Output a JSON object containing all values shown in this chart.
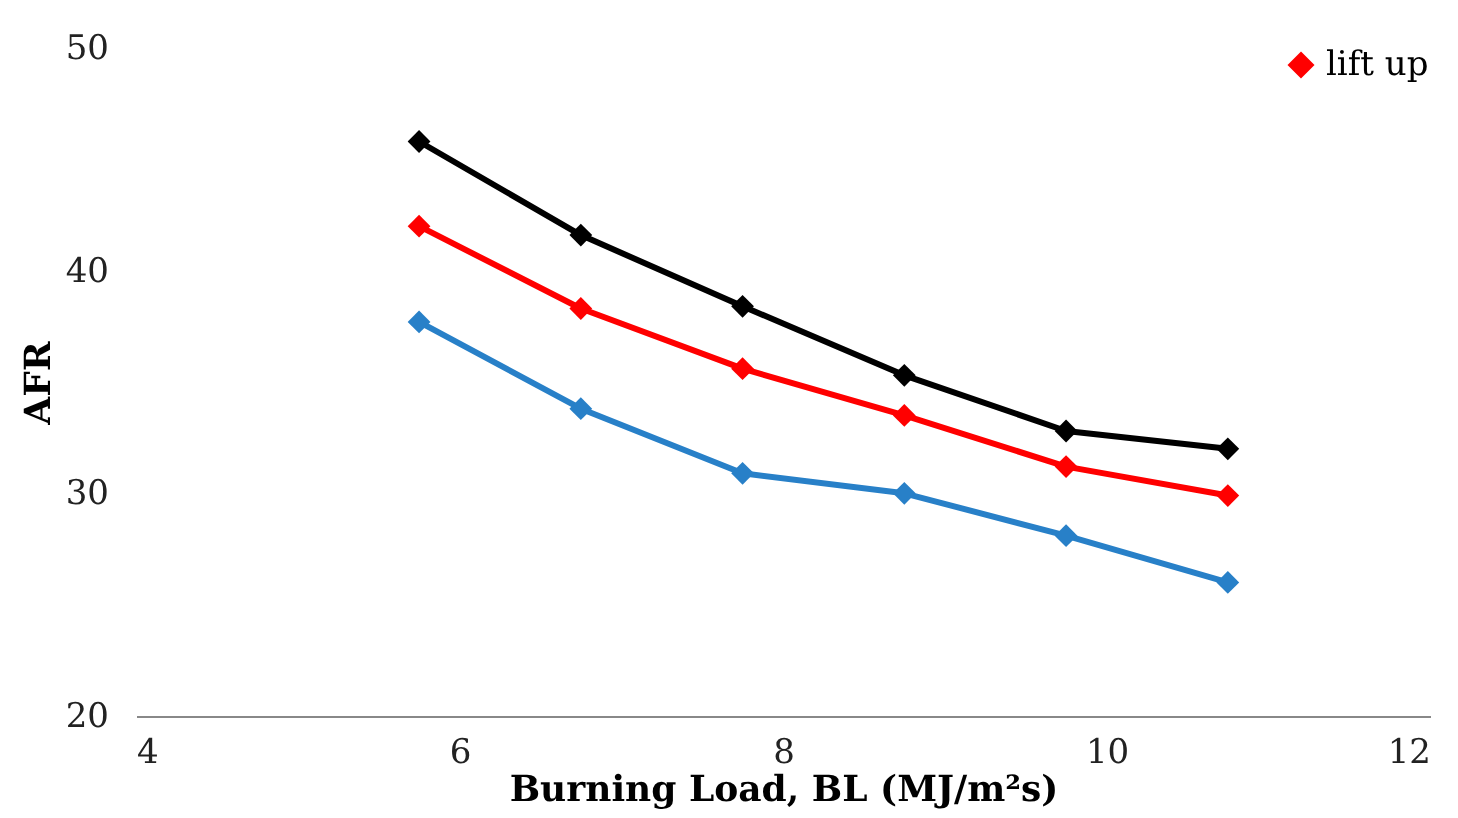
{
  "chart_data": {
    "type": "line",
    "xlabel": "Burning Load, BL (MJ/m²s)",
    "ylabel": "AFR",
    "x": [
      5.75,
      6.75,
      7.75,
      8.75,
      9.75,
      10.75
    ],
    "series": [
      {
        "color": "#000000",
        "values": [
          45.8,
          41.6,
          38.4,
          35.3,
          32.8,
          32.0
        ]
      },
      {
        "name": "lift up",
        "color": "#ff0000",
        "values": [
          42.0,
          38.3,
          35.6,
          33.5,
          31.2,
          29.9
        ]
      },
      {
        "color": "#2880c8",
        "values": [
          37.7,
          33.8,
          30.9,
          30.0,
          28.1,
          26.0
        ]
      }
    ],
    "xlim": [
      4,
      12
    ],
    "xticks": [
      4,
      6,
      8,
      10,
      12
    ],
    "ylim": [
      20,
      50
    ],
    "yticks": [
      20,
      30,
      40,
      50
    ],
    "grid": false,
    "legend": "top right",
    "marker": "diamond",
    "line_style": "solid"
  }
}
